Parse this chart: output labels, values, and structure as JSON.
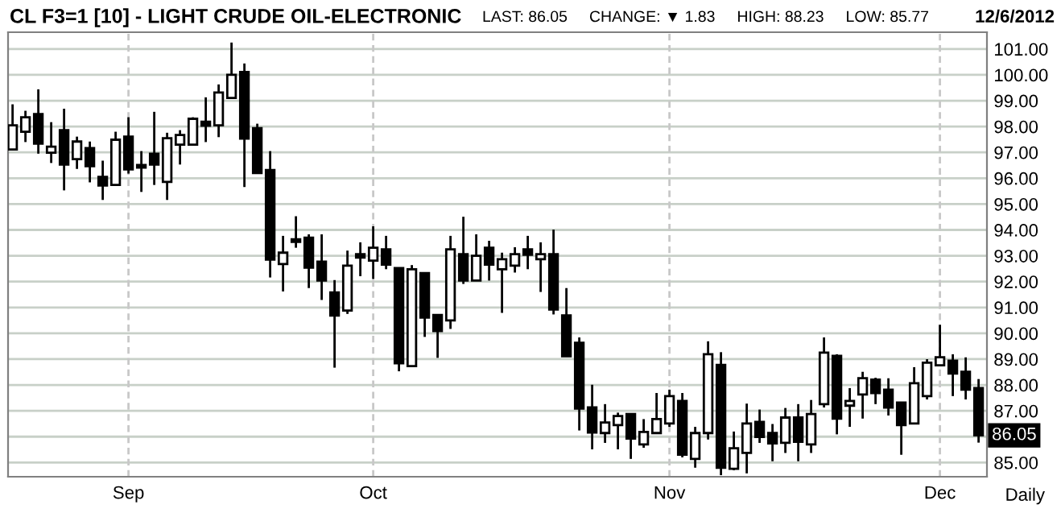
{
  "chart_data": {
    "type": "candlestick",
    "title": "CL F3=1 [10] - LIGHT CRUDE OIL-ELECTRONIC",
    "subtitle": "LAST: 86.05     CHANGE: ▼ 1.83     HIGH: 88.23     LOW: 85.77",
    "annotations": [
      "12/6/2012",
      "Daily",
      {
        "text": "86.05",
        "y": 86.05
      }
    ],
    "categories": [
      null,
      null,
      null,
      null,
      null,
      null,
      null,
      null,
      null,
      "Sep",
      null,
      null,
      null,
      null,
      null,
      null,
      null,
      null,
      null,
      null,
      null,
      null,
      null,
      null,
      null,
      null,
      null,
      null,
      "Oct",
      null,
      null,
      null,
      null,
      null,
      null,
      null,
      null,
      null,
      null,
      null,
      null,
      null,
      null,
      null,
      null,
      null,
      null,
      null,
      null,
      null,
      null,
      "Nov",
      null,
      null,
      null,
      null,
      null,
      null,
      null,
      null,
      null,
      null,
      null,
      null,
      null,
      null,
      null,
      null,
      null,
      null,
      null,
      null,
      "Dec",
      null,
      null,
      null
    ],
    "ohlc": [
      [
        97.11,
        98.86,
        97.11,
        98.05
      ],
      [
        97.8,
        98.61,
        97.4,
        98.36
      ],
      [
        98.48,
        99.44,
        96.95,
        97.34
      ],
      [
        96.99,
        98.17,
        96.59,
        97.22
      ],
      [
        97.86,
        98.69,
        95.53,
        96.53
      ],
      [
        96.74,
        97.61,
        96.36,
        97.42
      ],
      [
        97.17,
        97.42,
        95.84,
        96.47
      ],
      [
        96.05,
        96.68,
        95.16,
        95.72
      ],
      [
        95.74,
        97.8,
        95.74,
        97.49
      ],
      [
        97.61,
        98.36,
        96.18,
        96.34
      ],
      [
        96.51,
        97.05,
        95.47,
        96.41
      ],
      [
        96.95,
        98.57,
        95.74,
        96.53
      ],
      [
        95.86,
        97.76,
        95.16,
        97.55
      ],
      [
        97.3,
        97.86,
        96.53,
        97.67
      ],
      [
        97.3,
        98.36,
        97.3,
        98.3
      ],
      [
        98.19,
        99.13,
        97.4,
        98.03
      ],
      [
        98.05,
        99.63,
        97.59,
        99.32
      ],
      [
        99.11,
        101.25,
        99.11,
        100.0
      ],
      [
        100.11,
        100.44,
        95.66,
        97.53
      ],
      [
        97.94,
        98.11,
        96.2,
        96.2
      ],
      [
        96.32,
        97.05,
        92.16,
        92.85
      ],
      [
        92.68,
        93.77,
        91.62,
        93.12
      ],
      [
        93.64,
        94.53,
        93.31,
        93.54
      ],
      [
        93.7,
        93.83,
        91.75,
        92.54
      ],
      [
        92.77,
        93.83,
        91.29,
        92.04
      ],
      [
        91.58,
        92.06,
        88.67,
        90.69
      ],
      [
        90.88,
        93.2,
        90.75,
        92.62
      ],
      [
        93.06,
        93.52,
        92.21,
        92.93
      ],
      [
        92.81,
        94.14,
        92.1,
        93.31
      ],
      [
        93.25,
        93.77,
        92.48,
        92.66
      ],
      [
        92.52,
        92.52,
        88.53,
        88.84
      ],
      [
        88.73,
        92.64,
        88.73,
        92.48
      ],
      [
        92.33,
        92.33,
        89.86,
        90.61
      ],
      [
        90.71,
        90.71,
        89.05,
        90.09
      ],
      [
        90.5,
        93.77,
        90.17,
        93.25
      ],
      [
        93.06,
        94.51,
        91.91,
        92.04
      ],
      [
        92.04,
        93.83,
        92.04,
        93.0
      ],
      [
        93.31,
        93.58,
        92.04,
        92.66
      ],
      [
        92.48,
        93.12,
        90.79,
        92.87
      ],
      [
        92.62,
        93.33,
        92.35,
        93.06
      ],
      [
        93.25,
        93.77,
        92.48,
        93.04
      ],
      [
        92.87,
        93.52,
        91.6,
        93.06
      ],
      [
        93.06,
        94.01,
        90.73,
        90.92
      ],
      [
        90.69,
        91.75,
        89.11,
        89.11
      ],
      [
        89.63,
        89.84,
        86.24,
        87.09
      ],
      [
        87.13,
        88.01,
        85.51,
        86.16
      ],
      [
        86.14,
        87.26,
        85.76,
        86.55
      ],
      [
        86.45,
        86.93,
        85.51,
        86.8
      ],
      [
        86.88,
        86.88,
        85.14,
        85.93
      ],
      [
        85.7,
        86.68,
        85.57,
        86.18
      ],
      [
        86.14,
        87.69,
        86.14,
        86.68
      ],
      [
        86.51,
        87.82,
        86.38,
        87.57
      ],
      [
        87.38,
        87.69,
        85.2,
        85.3
      ],
      [
        85.14,
        86.38,
        84.8,
        86.14
      ],
      [
        86.14,
        89.69,
        85.89,
        89.19
      ],
      [
        88.78,
        89.27,
        84.51,
        84.8
      ],
      [
        84.76,
        86.2,
        84.7,
        85.55
      ],
      [
        85.37,
        87.28,
        84.58,
        86.51
      ],
      [
        86.57,
        87.05,
        85.76,
        85.99
      ],
      [
        86.14,
        86.49,
        85.05,
        85.74
      ],
      [
        85.76,
        87.11,
        85.37,
        86.74
      ],
      [
        86.74,
        87.26,
        85.05,
        85.8
      ],
      [
        85.7,
        87.42,
        85.37,
        86.88
      ],
      [
        87.26,
        89.84,
        87.13,
        89.25
      ],
      [
        89.13,
        89.19,
        86.09,
        86.7
      ],
      [
        87.2,
        87.88,
        86.38,
        87.38
      ],
      [
        87.63,
        88.51,
        86.7,
        88.26
      ],
      [
        88.21,
        88.28,
        87.26,
        87.69
      ],
      [
        87.82,
        88.26,
        86.82,
        87.13
      ],
      [
        87.32,
        87.32,
        85.3,
        86.45
      ],
      [
        86.51,
        88.69,
        86.51,
        88.07
      ],
      [
        87.57,
        89.0,
        87.44,
        88.86
      ],
      [
        88.76,
        90.33,
        88.76,
        89.07
      ],
      [
        88.94,
        89.19,
        87.57,
        88.44
      ],
      [
        88.51,
        89.07,
        87.44,
        87.82
      ],
      [
        87.88,
        88.23,
        85.77,
        86.05
      ]
    ],
    "color": "#000000",
    "ylim": [
      84.45,
      101.65
    ],
    "yticks": [
      {
        "value": 85,
        "label": "85.00"
      },
      {
        "value": 86,
        "label": null
      },
      {
        "value": 87,
        "label": "87.00"
      },
      {
        "value": 88,
        "label": "88.00"
      },
      {
        "value": 89,
        "label": "89.00"
      },
      {
        "value": 90,
        "label": "90.00"
      },
      {
        "value": 91,
        "label": "91.00"
      },
      {
        "value": 92,
        "label": "92.00"
      },
      {
        "value": 93,
        "label": "93.00"
      },
      {
        "value": 94,
        "label": "94.00"
      },
      {
        "value": 95,
        "label": "95.00"
      },
      {
        "value": 96,
        "label": "96.00"
      },
      {
        "value": 97,
        "label": "97.00"
      },
      {
        "value": 98,
        "label": "98.00"
      },
      {
        "value": 99,
        "label": "99.00"
      },
      {
        "value": 100,
        "label": "100.00"
      },
      {
        "value": 101,
        "label": "101.00"
      }
    ],
    "grid": true
  }
}
